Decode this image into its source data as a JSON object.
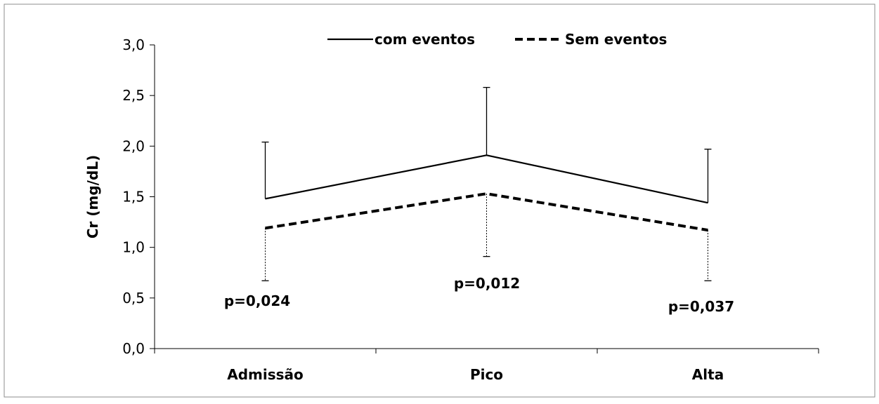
{
  "chart_data": {
    "type": "line",
    "title": "",
    "xlabel": "",
    "ylabel": "Cr (mg/dL)",
    "categories": [
      "Admissão",
      "Pico",
      "Alta"
    ],
    "ylim": [
      0,
      3.0
    ],
    "yticks": [
      "0,0",
      "0,5",
      "1,0",
      "1,5",
      "2,0",
      "2,5",
      "3,0"
    ],
    "ytick_values": [
      0,
      0.5,
      1.0,
      1.5,
      2.0,
      2.5,
      3.0
    ],
    "grid": false,
    "legend_position": "top-center",
    "series": [
      {
        "name": "com eventos",
        "style": "solid",
        "color": "#000000",
        "values": [
          1.48,
          1.91,
          1.44
        ],
        "error": [
          0.56,
          0.67,
          0.53
        ],
        "error_direction": "up"
      },
      {
        "name": "Sem eventos",
        "style": "dashed",
        "color": "#000000",
        "values": [
          1.19,
          1.53,
          1.17
        ],
        "error": [
          0.52,
          0.62,
          0.5
        ],
        "error_direction": "down"
      }
    ],
    "annotations": [
      "p=0,024",
      "p=0,012",
      "p=0,037"
    ]
  }
}
